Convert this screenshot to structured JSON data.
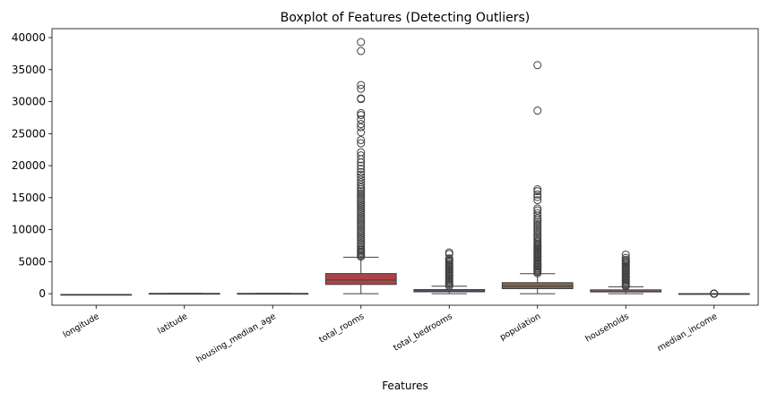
{
  "chart_data": {
    "type": "boxplot",
    "title": "Boxplot of Features (Detecting Outliers)",
    "xlabel": "Features",
    "ylabel": "",
    "ylim": [
      -1800,
      41400
    ],
    "yticks": [
      0,
      5000,
      10000,
      15000,
      20000,
      25000,
      30000,
      35000,
      40000
    ],
    "grid": false,
    "legend": "none",
    "series": [
      {
        "name": "longitude",
        "color": "#4c72b0",
        "q1": -121.8,
        "median": -118.5,
        "q3": -118.0,
        "whisker_low": -124.3,
        "whisker_high": -114.3,
        "outliers": []
      },
      {
        "name": "latitude",
        "color": "#dd8452",
        "q1": 33.9,
        "median": 34.3,
        "q3": 37.7,
        "whisker_low": 32.5,
        "whisker_high": 41.95,
        "outliers": []
      },
      {
        "name": "housing_median_age",
        "color": "#55a868",
        "q1": 18,
        "median": 29,
        "q3": 37,
        "whisker_low": 1,
        "whisker_high": 52,
        "outliers": []
      },
      {
        "name": "total_rooms",
        "color": "#c44e52",
        "q1": 1448,
        "median": 2127,
        "q3": 3148,
        "whisker_low": 2,
        "whisker_high": 5698,
        "outliers": [
          5800,
          6000,
          6200,
          6400,
          6600,
          6800,
          7000,
          7300,
          7600,
          7900,
          8200,
          8500,
          8800,
          9100,
          9400,
          9700,
          10000,
          10300,
          10600,
          10900,
          11200,
          11500,
          11800,
          12100,
          12400,
          12700,
          13000,
          13300,
          13600,
          13900,
          14200,
          14500,
          14800,
          15100,
          15400,
          15700,
          16000,
          16300,
          16600,
          17000,
          17400,
          17800,
          18200,
          18600,
          19000,
          19500,
          20000,
          20500,
          21000,
          21600,
          22100,
          23500,
          24000,
          25200,
          26000,
          26500,
          27200,
          27900,
          28200,
          30400,
          30500,
          32000,
          32600,
          37900,
          39300
        ]
      },
      {
        "name": "total_bedrooms",
        "color": "#8172b3",
        "q1": 296,
        "median": 435,
        "q3": 647,
        "whisker_low": 1,
        "whisker_high": 1173,
        "outliers": [
          1200,
          1400,
          1600,
          1800,
          2000,
          2200,
          2400,
          2600,
          2800,
          3000,
          3200,
          3400,
          3600,
          3800,
          4000,
          4200,
          4400,
          4600,
          4800,
          5000,
          5200,
          5400,
          5500,
          6200,
          6450
        ]
      },
      {
        "name": "population",
        "color": "#937860",
        "q1": 787,
        "median": 1166,
        "q3": 1725,
        "whisker_low": 3,
        "whisker_high": 3132,
        "outliers": [
          3200,
          3400,
          3600,
          3800,
          4000,
          4200,
          4400,
          4600,
          4800,
          5000,
          5200,
          5400,
          5600,
          5800,
          6000,
          6200,
          6400,
          6600,
          6800,
          7000,
          7200,
          7400,
          7600,
          7800,
          8000,
          8200,
          8500,
          8800,
          9100,
          9400,
          9700,
          10000,
          10300,
          10600,
          10900,
          11200,
          11500,
          11800,
          12200,
          12600,
          13000,
          13300,
          14600,
          15100,
          15500,
          16000,
          16300,
          28600,
          35700
        ]
      },
      {
        "name": "households",
        "color": "#da8bc3",
        "q1": 280,
        "median": 409,
        "q3": 605,
        "whisker_low": 1,
        "whisker_high": 1092,
        "outliers": [
          1150,
          1300,
          1500,
          1700,
          1900,
          2100,
          2300,
          2500,
          2700,
          2900,
          3100,
          3300,
          3500,
          3700,
          3900,
          4100,
          4300,
          4500,
          4700,
          4900,
          5100,
          5300,
          5600,
          6100
        ]
      },
      {
        "name": "median_income",
        "color": "#8c8c8c",
        "q1": 2.56,
        "median": 3.53,
        "q3": 4.74,
        "whisker_low": 0.5,
        "whisker_high": 8.0,
        "outliers": [
          8.5,
          9,
          10,
          11,
          12,
          13,
          14,
          15
        ]
      }
    ]
  }
}
